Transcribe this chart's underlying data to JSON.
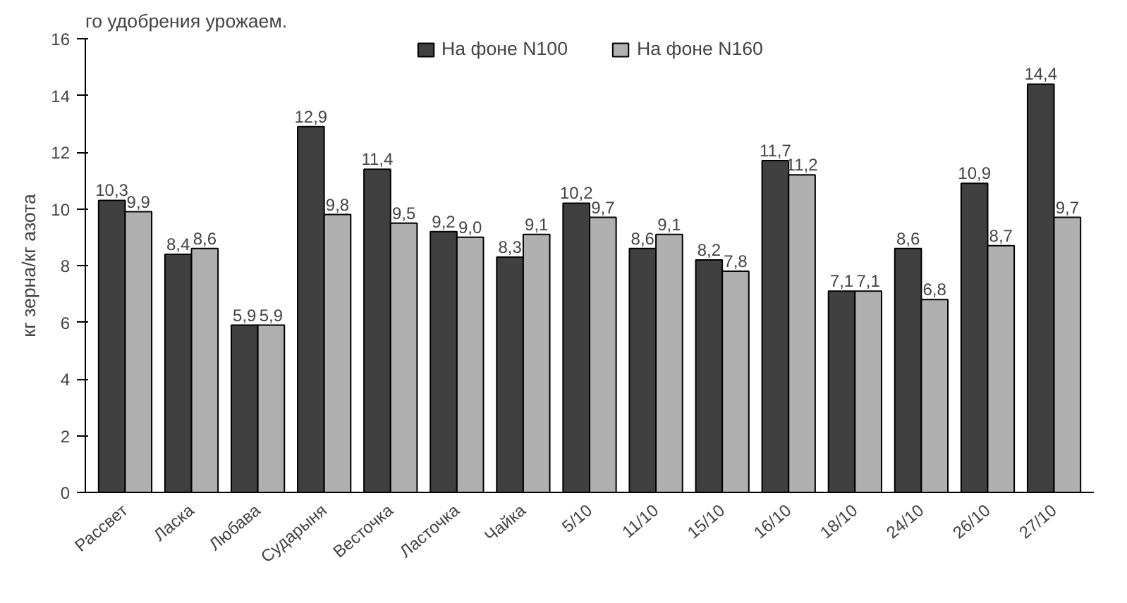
{
  "chart_data": {
    "type": "bar",
    "ylabel": "кг зерна/кг азота",
    "annotations": [
      "го удобрения урожаем."
    ],
    "categories": [
      "Рассвет",
      "Ласка",
      "Любава",
      "Сударыня",
      "Весточка",
      "Ласточка",
      "Чайка",
      "5/10",
      "11/10",
      "15/10",
      "16/10",
      "18/10",
      "24/10",
      "26/10",
      "27/10"
    ],
    "series": [
      {
        "name": "На фоне N100",
        "color": "#404040",
        "values": [
          10.3,
          8.4,
          5.9,
          12.9,
          11.4,
          9.2,
          8.3,
          10.2,
          8.6,
          8.2,
          11.7,
          7.1,
          8.6,
          10.9,
          14.4
        ],
        "value_labels": [
          "10,3",
          "8,4",
          "5,9",
          "12,9",
          "11,4",
          "9,2",
          "8,3",
          "10,2",
          "8,6",
          "8,2",
          "11,7",
          "7,1",
          "8,6",
          "10,9",
          "14,4"
        ]
      },
      {
        "name": "На фоне N160",
        "color": "#b0b0b0",
        "values": [
          9.9,
          8.6,
          5.9,
          9.8,
          9.5,
          9.0,
          9.1,
          9.7,
          9.1,
          7.8,
          11.2,
          7.1,
          6.8,
          8.7,
          9.7
        ],
        "value_labels": [
          "9,9",
          "8,6",
          "5,9",
          "9,8",
          "9,5",
          "9,0",
          "9,1",
          "9,7",
          "9,1",
          "7,8",
          "11,2",
          "7,1",
          "6,8",
          "8,7",
          "9,7"
        ]
      }
    ],
    "ylim": [
      0,
      16
    ],
    "yticks": [
      0,
      2,
      4,
      6,
      8,
      10,
      12,
      14,
      16
    ],
    "grid": false,
    "legend": "top"
  }
}
